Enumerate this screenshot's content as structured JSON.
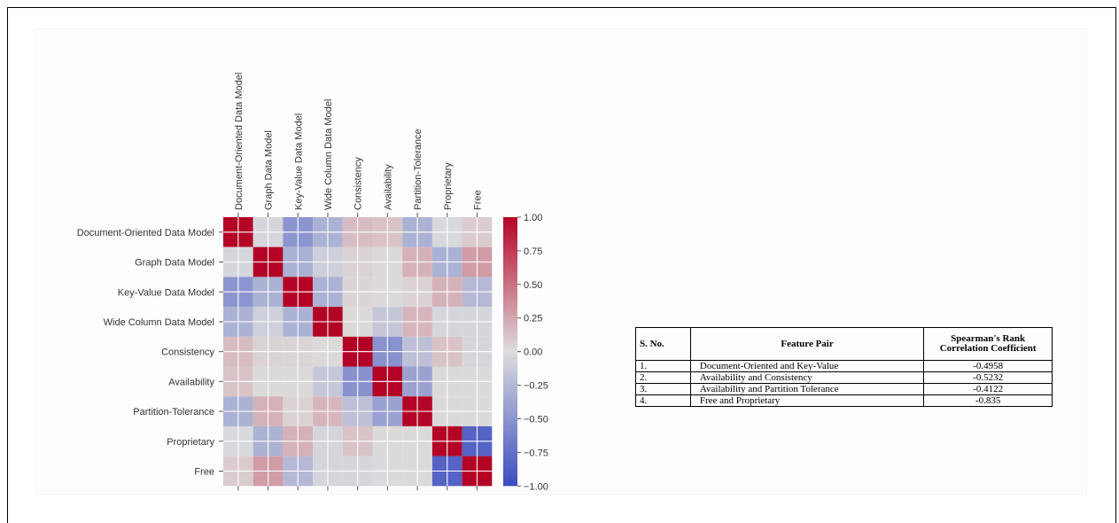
{
  "chart_data": {
    "type": "heatmap",
    "title": "",
    "labels": [
      "Document-Oriented Data Model",
      "Graph Data Model",
      "Key-Value Data Model",
      "Wide Column Data Model",
      "Consistency",
      "Availability",
      "Partition-Tolerance",
      "Proprietary",
      "Free"
    ],
    "matrix": [
      [
        1.0,
        -0.05,
        -0.5,
        -0.3,
        0.15,
        0.12,
        -0.3,
        -0.03,
        0.08
      ],
      [
        -0.05,
        1.0,
        -0.3,
        -0.1,
        0.05,
        0.02,
        0.2,
        -0.3,
        0.3
      ],
      [
        -0.5,
        -0.3,
        1.0,
        -0.3,
        0.04,
        0.02,
        0.05,
        0.2,
        -0.25
      ],
      [
        -0.3,
        -0.1,
        -0.3,
        1.0,
        0.02,
        -0.15,
        0.18,
        -0.05,
        -0.05
      ],
      [
        0.15,
        0.05,
        0.04,
        0.02,
        1.0,
        -0.52,
        -0.2,
        0.12,
        -0.05
      ],
      [
        0.12,
        0.02,
        0.02,
        -0.15,
        -0.52,
        1.0,
        -0.41,
        0.02,
        -0.02
      ],
      [
        -0.3,
        0.2,
        0.05,
        0.18,
        -0.2,
        -0.41,
        1.0,
        0.02,
        -0.02
      ],
      [
        -0.03,
        -0.3,
        0.2,
        -0.05,
        0.12,
        0.02,
        0.02,
        1.0,
        -0.84
      ],
      [
        0.08,
        0.3,
        -0.25,
        -0.05,
        -0.05,
        -0.02,
        -0.02,
        -0.84,
        1.0
      ]
    ],
    "colorbar": {
      "range": [
        -1.0,
        1.0
      ],
      "ticks": [
        1.0,
        0.75,
        0.5,
        0.25,
        0.0,
        -0.25,
        -0.5,
        -0.75,
        -1.0
      ],
      "tick_labels": [
        "1.00",
        "0.75",
        "0.50",
        "0.25",
        "0.00",
        "−0.25",
        "−0.50",
        "−0.75",
        "−1.00"
      ],
      "colormap": "coolwarm",
      "colors": {
        "low": "#3b4cc0",
        "mid": "#dddddd",
        "high": "#b40426"
      }
    },
    "cell_border_color": "#ffffff",
    "grid": true
  },
  "table": {
    "headers": {
      "no": "S. No.",
      "pair": "Feature Pair",
      "coef_line1": "Spearman's Rank",
      "coef_line2": "Correlation Coefficient"
    },
    "rows": [
      {
        "no": "1.",
        "pair": "Document-Oriented and Key-Value",
        "coef": "-0.4958"
      },
      {
        "no": "2.",
        "pair": "Availability and Consistency",
        "coef": "-0.5232"
      },
      {
        "no": "3.",
        "pair": "Availability and Partition Tolerance",
        "coef": "-0.4122"
      },
      {
        "no": "4.",
        "pair": "Free and Proprietary",
        "coef": "-0.835"
      }
    ]
  }
}
